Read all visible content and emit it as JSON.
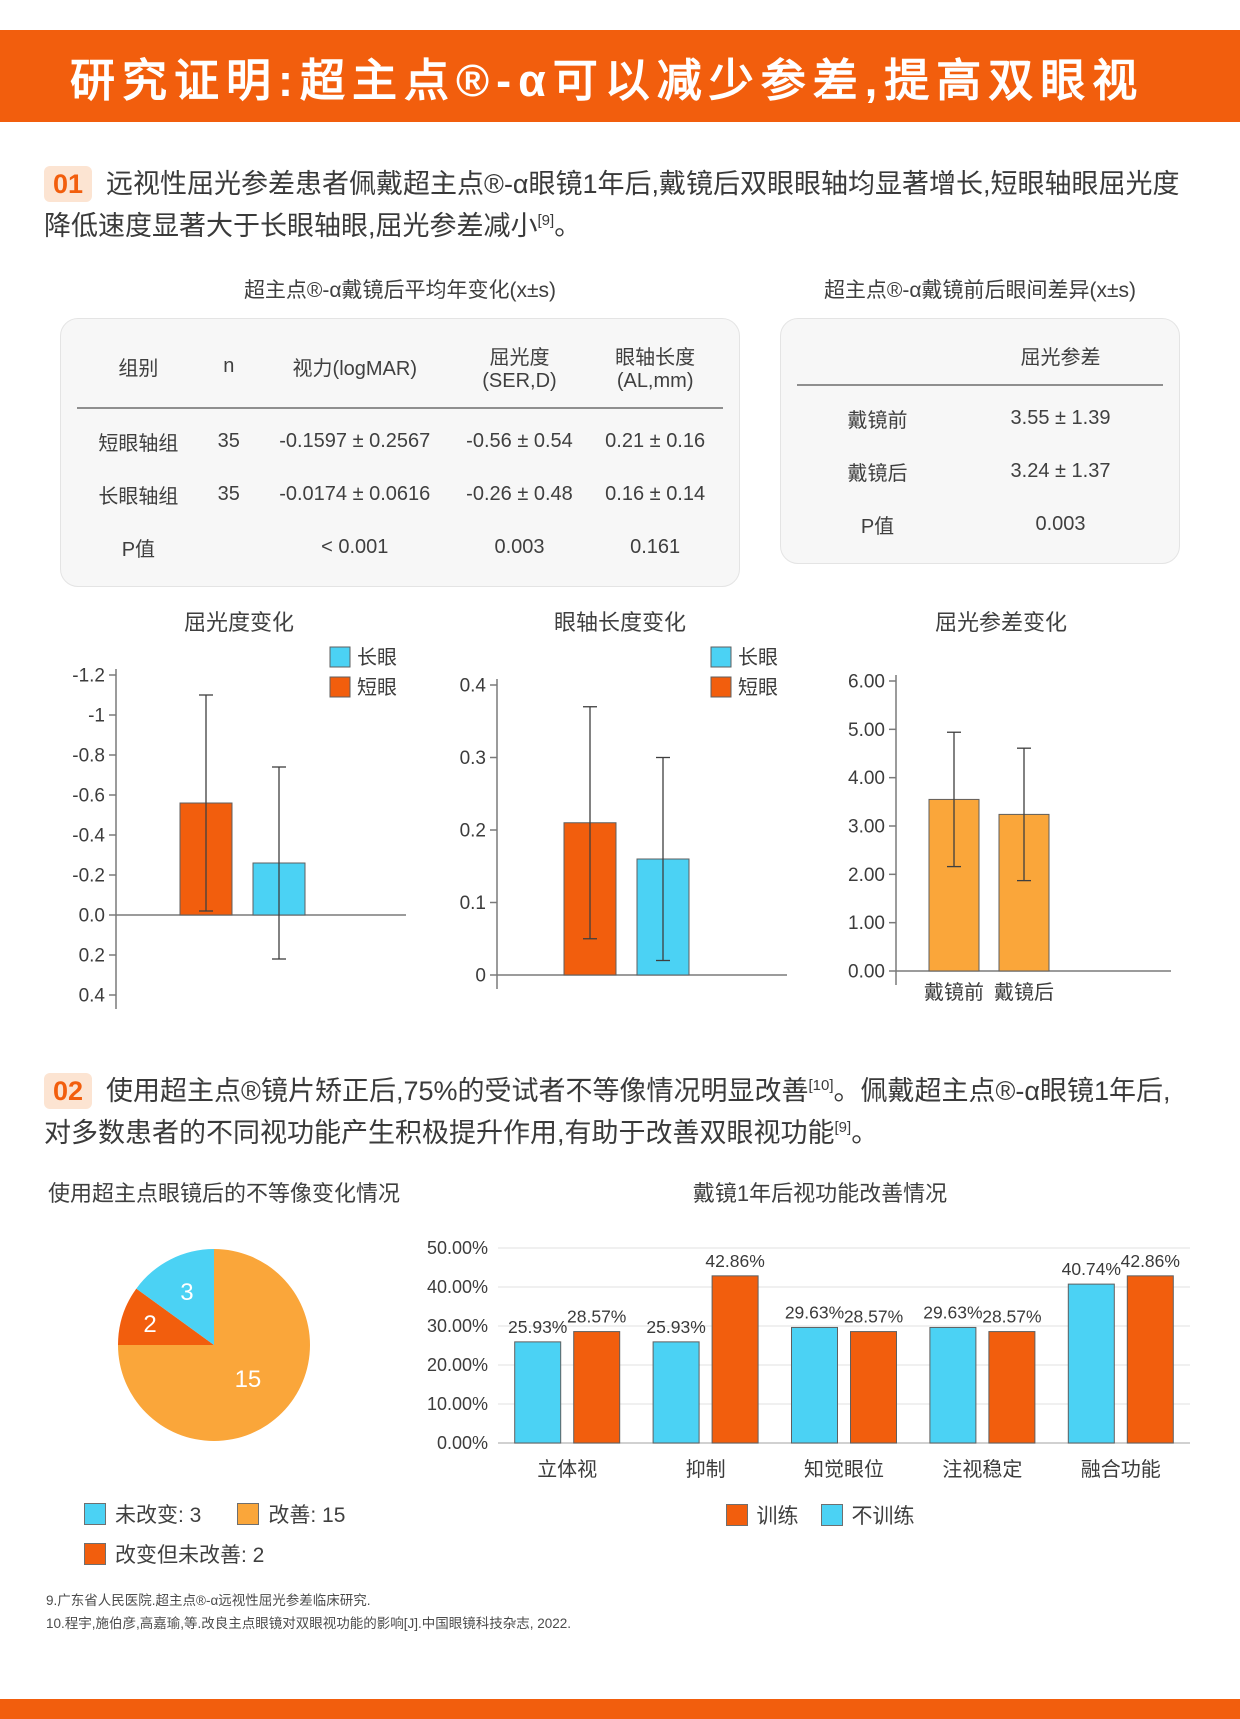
{
  "brand": {
    "orange": "#F25E0D",
    "badge_bg": "#FCE4D2",
    "cyan": "#4BD2F4",
    "amber": "#FAA63A",
    "table_bg": "#F7F7F7"
  },
  "header": {
    "title": "研究证明:超主点®-α可以减少参差,提高双眼视"
  },
  "sections": {
    "s1": {
      "number": "01",
      "text": "远视性屈光参差患者佩戴超主点®-α眼镜1年后,戴镜后双眼眼轴均显著增长,短眼轴眼屈光度降低速度显著大于长眼轴眼,屈光参差减小",
      "ref": "[9]",
      "period": "。"
    },
    "s2": {
      "number": "02",
      "text1": "使用超主点®镜片矫正后,75%的受试者不等像情况明显改善",
      "ref1": "[10]",
      "text2": "。佩戴超主点®-α眼镜1年后,对多数患者的不同视功能产生积极提升作用,有助于改善双眼视功能",
      "ref2": "[9]",
      "period": "。"
    }
  },
  "tables": {
    "annual": {
      "title": "超主点®-α戴镜后平均年变化(x±s)",
      "headers": [
        "组别",
        "n",
        "视力(logMAR)",
        "屈光度(SER,D)",
        "眼轴长度(AL,mm)"
      ],
      "rows": [
        [
          "短眼轴组",
          "35",
          "-0.1597 ± 0.2567",
          "-0.56 ± 0.54",
          "0.21 ± 0.16"
        ],
        [
          "长眼轴组",
          "35",
          "-0.0174 ± 0.0616",
          "-0.26 ± 0.48",
          "0.16 ± 0.14"
        ],
        [
          "P值",
          "",
          "< 0.001",
          "0.003",
          "0.161"
        ]
      ]
    },
    "diff": {
      "title": "超主点®-α戴镜前后眼间差异(x±s)",
      "headers": [
        "",
        "屈光参差"
      ],
      "rows": [
        [
          "戴镜前",
          "3.55 ± 1.39"
        ],
        [
          "戴镜后",
          "3.24 ± 1.37"
        ],
        [
          "P值",
          "0.003"
        ]
      ]
    }
  },
  "chart_data": [
    {
      "id": "refraction-change",
      "type": "bar",
      "title": "屈光度变化",
      "categories": [
        "短眼",
        "长眼"
      ],
      "values": [
        -0.56,
        -0.26
      ],
      "errors": [
        0.54,
        0.48
      ],
      "colors": [
        "#F25E0D",
        "#4BD2F4"
      ],
      "ylim": [
        -1.2,
        0.4
      ],
      "axis_inverted": true,
      "yticks": [
        {
          "v": -1.2,
          "label": "-1.2"
        },
        {
          "v": -1,
          "label": "-1"
        },
        {
          "v": -0.8,
          "label": "-0.8"
        },
        {
          "v": -0.6,
          "label": "-0.6"
        },
        {
          "v": -0.4,
          "label": "-0.4"
        },
        {
          "v": -0.2,
          "label": "-0.2"
        },
        {
          "v": 0,
          "label": "0.0"
        },
        {
          "v": 0.2,
          "label": "0.2"
        },
        {
          "v": 0.4,
          "label": "0.4"
        }
      ],
      "legend": [
        {
          "label": "长眼",
          "color": "#4BD2F4"
        },
        {
          "label": "短眼",
          "color": "#F25E0D"
        }
      ]
    },
    {
      "id": "axial-length-change",
      "type": "bar",
      "title": "眼轴长度变化",
      "categories": [
        "短眼",
        "长眼"
      ],
      "values": [
        0.21,
        0.16
      ],
      "errors": [
        0.16,
        0.14
      ],
      "colors": [
        "#F25E0D",
        "#4BD2F4"
      ],
      "ylim": [
        0,
        0.4
      ],
      "yticks": [
        {
          "v": 0,
          "label": "0"
        },
        {
          "v": 0.1,
          "label": "0.1"
        },
        {
          "v": 0.2,
          "label": "0.2"
        },
        {
          "v": 0.3,
          "label": "0.3"
        },
        {
          "v": 0.4,
          "label": "0.4"
        }
      ],
      "legend": [
        {
          "label": "长眼",
          "color": "#4BD2F4"
        },
        {
          "label": "短眼",
          "color": "#F25E0D"
        }
      ]
    },
    {
      "id": "anisometropia-change",
      "type": "bar",
      "title": "屈光参差变化",
      "categories": [
        "戴镜前",
        "戴镜后"
      ],
      "values": [
        3.55,
        3.24
      ],
      "errors": [
        1.39,
        1.37
      ],
      "colors": [
        "#FAA63A",
        "#FAA63A"
      ],
      "ylim": [
        0,
        6
      ],
      "show_xlabels": true,
      "yticks": [
        {
          "v": 0,
          "label": "0.00"
        },
        {
          "v": 1,
          "label": "1.00"
        },
        {
          "v": 2,
          "label": "2.00"
        },
        {
          "v": 3,
          "label": "3.00"
        },
        {
          "v": 4,
          "label": "4.00"
        },
        {
          "v": 5,
          "label": "5.00"
        },
        {
          "v": 6,
          "label": "6.00"
        }
      ]
    },
    {
      "id": "aniseikonia-pie",
      "type": "pie",
      "title": "使用超主点眼镜后的不等像变化情况",
      "slices": [
        {
          "label": "改善",
          "value": 15,
          "color": "#FAA63A"
        },
        {
          "label": "改变但未改善",
          "value": 2,
          "color": "#F25E0D"
        },
        {
          "label": "未改变",
          "value": 3,
          "color": "#4BD2F4"
        }
      ],
      "legend": [
        {
          "label": "未改变: 3",
          "color": "#4BD2F4"
        },
        {
          "label": "改善: 15",
          "color": "#FAA63A"
        },
        {
          "label": "改变但未改善: 2",
          "color": "#F25E0D"
        }
      ]
    },
    {
      "id": "visual-function-improvement",
      "type": "bar",
      "title": "戴镜1年后视功能改善情况",
      "categories": [
        "立体视",
        "抑制",
        "知觉眼位",
        "注视稳定",
        "融合功能"
      ],
      "series": [
        {
          "name": "不训练",
          "color": "#4BD2F4",
          "values": [
            25.93,
            25.93,
            29.63,
            29.63,
            40.74
          ],
          "labels": [
            "25.93%",
            "25.93%",
            "29.63%",
            "29.63%",
            "40.74%"
          ]
        },
        {
          "name": "训练",
          "color": "#F25E0D",
          "values": [
            28.57,
            42.86,
            28.57,
            28.57,
            42.86
          ],
          "labels": [
            "28.57%",
            "42.86%",
            "28.57%",
            "28.57%",
            "42.86%"
          ]
        }
      ],
      "ylim": [
        0,
        50
      ],
      "yticks": [
        {
          "v": 0,
          "label": "0.00%"
        },
        {
          "v": 10,
          "label": "10.00%"
        },
        {
          "v": 20,
          "label": "20.00%"
        },
        {
          "v": 30,
          "label": "30.00%"
        },
        {
          "v": 40,
          "label": "40.00%"
        },
        {
          "v": 50,
          "label": "50.00%"
        }
      ],
      "legend": [
        {
          "label": "训练",
          "color": "#F25E0D"
        },
        {
          "label": "不训练",
          "color": "#4BD2F4"
        }
      ]
    }
  ],
  "footnotes": [
    "9.广东省人民医院.超主点®-α远视性屈光参差临床研究.",
    "10.程宇,施伯彦,高嘉瑜,等.改良主点眼镜对双眼视功能的影响[J].中国眼镜科技杂志, 2022."
  ]
}
